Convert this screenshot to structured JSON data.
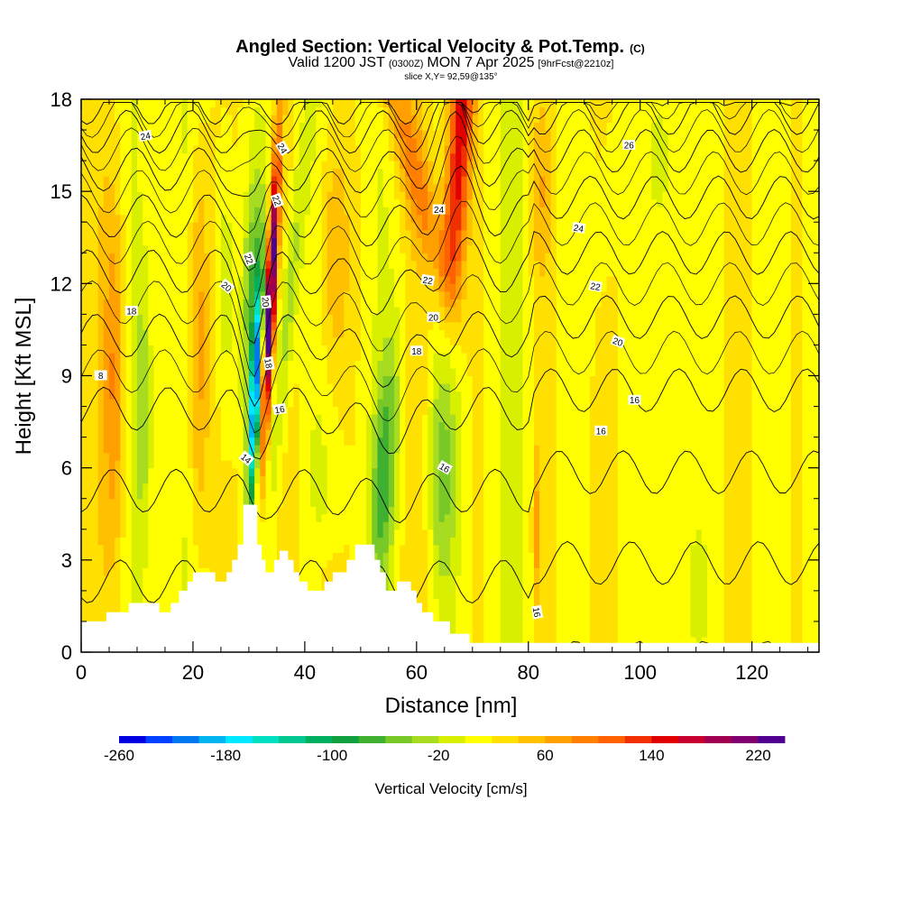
{
  "title": {
    "main": "Angled Section: Vertical Velocity & Pot.Temp.",
    "main_unit": "(C)",
    "valid_a": "Valid 1200 JST",
    "valid_b": "(0300Z)",
    "valid_c": "MON 7 Apr 2025",
    "valid_d": "[9hrFcst@2210z]",
    "slice": "slice X,Y= 92,59@135°"
  },
  "chart_data": {
    "type": "heatmap",
    "xlabel": "Distance [nm]",
    "ylabel": "Height [Kft MSL]",
    "xlim": [
      0,
      132
    ],
    "ylim": [
      0,
      18
    ],
    "xticks": [
      "0",
      "20",
      "40",
      "60",
      "80",
      "100",
      "120"
    ],
    "yticks": [
      "0",
      "3",
      "6",
      "9",
      "12",
      "15",
      "18"
    ],
    "colorbar": {
      "label": "Vertical Velocity [cm/s]",
      "min": -260,
      "max": 240,
      "step": 20,
      "tick_labels": [
        "-260",
        "-180",
        "-100",
        "-20",
        "60",
        "140",
        "220"
      ],
      "colors": [
        "#0000e0",
        "#0040ff",
        "#0078f0",
        "#00b4f0",
        "#00e8ff",
        "#00e0c0",
        "#00c890",
        "#00b060",
        "#10a040",
        "#40b030",
        "#78c828",
        "#a8dc20",
        "#d8f000",
        "#ffff00",
        "#ffe000",
        "#ffc000",
        "#ffa000",
        "#ff8000",
        "#ff6000",
        "#f03000",
        "#e00000",
        "#c80030",
        "#a00050",
        "#800070",
        "#500090"
      ]
    },
    "theta_contour_labels": [
      "8",
      "14",
      "16",
      "18",
      "20",
      "22",
      "24",
      "26"
    ],
    "theta_levels": [
      8,
      10,
      12,
      14,
      16,
      18,
      20,
      22,
      24,
      26
    ]
  }
}
